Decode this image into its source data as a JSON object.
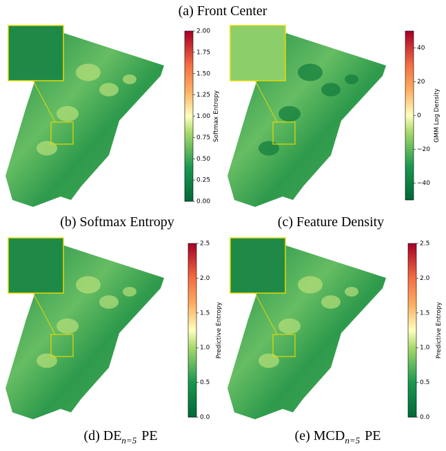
{
  "title": "(a) Front Center",
  "panels": [
    {
      "caption": {
        "prefix": "(b) Softmax Entropy"
      },
      "colorbar_label": "Softmax Entropy",
      "lim": [
        0,
        2
      ],
      "ticks": [
        {
          "value": 0,
          "label": "0.00"
        },
        {
          "value": 0.25,
          "label": "0.25"
        },
        {
          "value": 0.5,
          "label": "0.50"
        },
        {
          "value": 0.75,
          "label": "0.75"
        },
        {
          "value": 1,
          "label": "1.00"
        },
        {
          "value": 1.25,
          "label": "1.25"
        },
        {
          "value": 1.5,
          "label": "1.50"
        },
        {
          "value": 1.75,
          "label": "1.75"
        },
        {
          "value": 2,
          "label": "2.00"
        }
      ]
    },
    {
      "caption": {
        "prefix": "(c) Feature Density"
      },
      "colorbar_label": "GMM Log Density",
      "lim": [
        -50,
        50
      ],
      "ticks": [
        {
          "value": -40,
          "label": "−40"
        },
        {
          "value": -20,
          "label": "−20"
        },
        0,
        20,
        40
      ]
    },
    {
      "caption": {
        "prefix": "(d) DE",
        "subscript": "n=5",
        "suffix": "PE"
      },
      "colorbar_label": "Predictive Entropy",
      "lim": [
        0,
        2.5
      ],
      "ticks": [
        {
          "value": 0,
          "label": "0.0"
        },
        0.5,
        {
          "value": 1,
          "label": "1.0"
        },
        1.5,
        {
          "value": 2,
          "label": "2.0"
        },
        2.5
      ]
    },
    {
      "caption": {
        "prefix": "(e) MCD",
        "subscript": "n=5",
        "suffix": "PE"
      },
      "colorbar_label": "Predictive Entropy",
      "lim": [
        0,
        2.5
      ],
      "ticks": [
        {
          "value": 0,
          "label": "0.0"
        },
        0.5,
        {
          "value": 1,
          "label": "1.0"
        },
        1.5,
        {
          "value": 2,
          "label": "2.0"
        },
        2.5
      ]
    }
  ]
}
